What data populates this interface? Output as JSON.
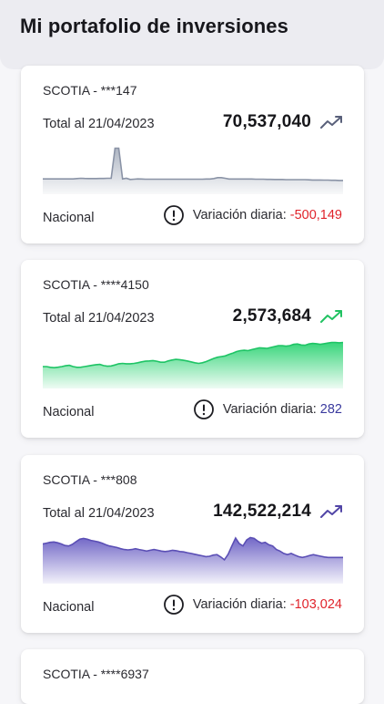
{
  "header": {
    "title": "Mi portafolio de inversiones"
  },
  "colors": {
    "negative": "#e0232b",
    "positive": "#3a3a9e",
    "trend_gray": "#59607a",
    "trend_green": "#21c262",
    "trend_purple": "#5145a6"
  },
  "cards": [
    {
      "account": "SCOTIA - ***147",
      "total_label": "Total al 21/04/2023",
      "total_value": "70,537,040",
      "trend_icon": "trending-up-icon",
      "market": "Nacional",
      "variation_label": "Variación diaria:",
      "variation_value": "-500,149",
      "chart_data": {
        "type": "area",
        "values": [
          10,
          10,
          10,
          10,
          10,
          10,
          10,
          10,
          10,
          10.2,
          10.4,
          10.3,
          10.2,
          10.2,
          10.2,
          10.3,
          10.3,
          10.4,
          10.4,
          30,
          30,
          10,
          10.4,
          9.6,
          9.8,
          10,
          9.9,
          9.8,
          9.8,
          9.8,
          9.8,
          9.8,
          9.8,
          9.8,
          9.8,
          9.8,
          9.8,
          9.8,
          9.8,
          9.8,
          9.8,
          9.8,
          9.8,
          9.9,
          9.9,
          10.2,
          10.8,
          10.8,
          10.4,
          9.9,
          9.9,
          9.9,
          9.9,
          9.9,
          9.9,
          9.9,
          9.8,
          9.8,
          9.8,
          9.7,
          9.7,
          9.6,
          9.6,
          9.6,
          9.5,
          9.5,
          9.5,
          9.5,
          9.5,
          9.5,
          9.4,
          9.3,
          9.3,
          9.3,
          9.2,
          9.2,
          9.1,
          9.1,
          9.0,
          9.0
        ]
      }
    },
    {
      "account": "SCOTIA - ****4150",
      "total_label": "Total al 21/04/2023",
      "total_value": "2,573,684",
      "trend_icon": "trending-up-icon",
      "market": "Nacional",
      "variation_label": "Variación diaria:",
      "variation_value": "282",
      "chart_data": {
        "type": "area",
        "values": [
          14,
          14,
          13.5,
          13.3,
          13.6,
          14,
          14.5,
          14.8,
          14,
          13.5,
          13.6,
          14,
          14.4,
          14.8,
          15.2,
          15.4,
          14.6,
          14.2,
          14.4,
          15,
          15.8,
          16,
          15.8,
          15.8,
          16,
          16.4,
          17,
          17.4,
          17.6,
          17.8,
          17.4,
          16.8,
          16.8,
          17.6,
          18.2,
          18.6,
          18.4,
          18,
          17.6,
          17,
          16.4,
          16,
          16.4,
          17.2,
          18.2,
          19.2,
          20,
          20.4,
          20.8,
          21.8,
          22.6,
          23.6,
          24.2,
          24.4,
          24.2,
          24.8,
          25.4,
          26,
          25.8,
          25.6,
          26.2,
          26.8,
          27.4,
          27.4,
          27,
          27.4,
          28.2,
          28.4,
          27.8,
          27.6,
          28.4,
          28.8,
          28.6,
          28.2,
          28.6,
          29,
          29.4,
          29.4,
          29.2,
          29.4
        ]
      }
    },
    {
      "account": "SCOTIA - ***808",
      "total_label": "Total al 21/04/2023",
      "total_value": "142,522,214",
      "trend_icon": "trending-up-icon",
      "market": "Nacional",
      "variation_label": "Variación diaria:",
      "variation_value": "-103,024",
      "chart_data": {
        "type": "area",
        "values": [
          20,
          20.4,
          20.8,
          21,
          20.6,
          20,
          19.2,
          19,
          19.8,
          21.2,
          22.4,
          22.8,
          22.4,
          21.8,
          21.4,
          21,
          20.4,
          19.6,
          19,
          18.6,
          18.2,
          17.6,
          17.2,
          17,
          17.2,
          17.6,
          17.2,
          16.8,
          16.4,
          16.8,
          17.2,
          16.8,
          16.4,
          16.2,
          16.4,
          16.8,
          16.6,
          16.2,
          16,
          15.6,
          15.2,
          14.8,
          14.4,
          14,
          13.6,
          13.8,
          14.4,
          14.6,
          13.4,
          12,
          14.8,
          19,
          23,
          20.2,
          19,
          22,
          23.2,
          22.8,
          21.4,
          20.4,
          20.8,
          19.6,
          19,
          17.2,
          16.4,
          15.2,
          14.6,
          15.2,
          14.4,
          13.6,
          13.2,
          13.6,
          14.2,
          14.6,
          14.2,
          13.8,
          13.4,
          13.2,
          13.2,
          13.2,
          13.2,
          13.2
        ]
      }
    },
    {
      "account": "SCOTIA - ****6937"
    }
  ]
}
